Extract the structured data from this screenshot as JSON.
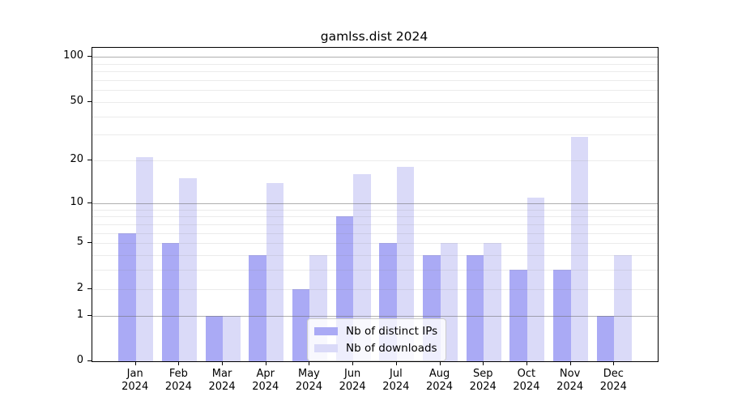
{
  "chart_data": {
    "type": "bar",
    "title": "gamlss.dist 2024",
    "categories": [
      "Jan 2024",
      "Feb 2024",
      "Mar 2024",
      "Apr 2024",
      "May 2024",
      "Jun 2024",
      "Jul 2024",
      "Aug 2024",
      "Sep 2024",
      "Oct 2024",
      "Nov 2024",
      "Dec 2024"
    ],
    "series": [
      {
        "name": "Nb of distinct IPs",
        "color": "#aaaaf5",
        "values": [
          6,
          5,
          1,
          4,
          2,
          8,
          5,
          4,
          4,
          3,
          3,
          1
        ]
      },
      {
        "name": "Nb of downloads",
        "color": "#dadaf8",
        "values": [
          21,
          15,
          1,
          14,
          4,
          16,
          18,
          5,
          5,
          11,
          29,
          4
        ]
      }
    ],
    "yscale": "log1p",
    "ylim": [
      0,
      115
    ],
    "yticks": [
      0,
      1,
      2,
      5,
      10,
      20,
      50,
      100
    ],
    "grid_major_values": [
      1,
      10,
      100
    ],
    "grid_minor_values": [
      2,
      3,
      4,
      5,
      6,
      7,
      8,
      9,
      20,
      30,
      40,
      50,
      60,
      70,
      80,
      90
    ],
    "grid": "on",
    "legend_position": "lower center"
  },
  "colors": {
    "bar_dark": "#aaaaf5",
    "bar_light": "#dadaf8",
    "grid_major": "#6e6e6e",
    "grid_minor": "#d9d9d9",
    "axis": "#000000",
    "legend_border": "#cccccc"
  }
}
